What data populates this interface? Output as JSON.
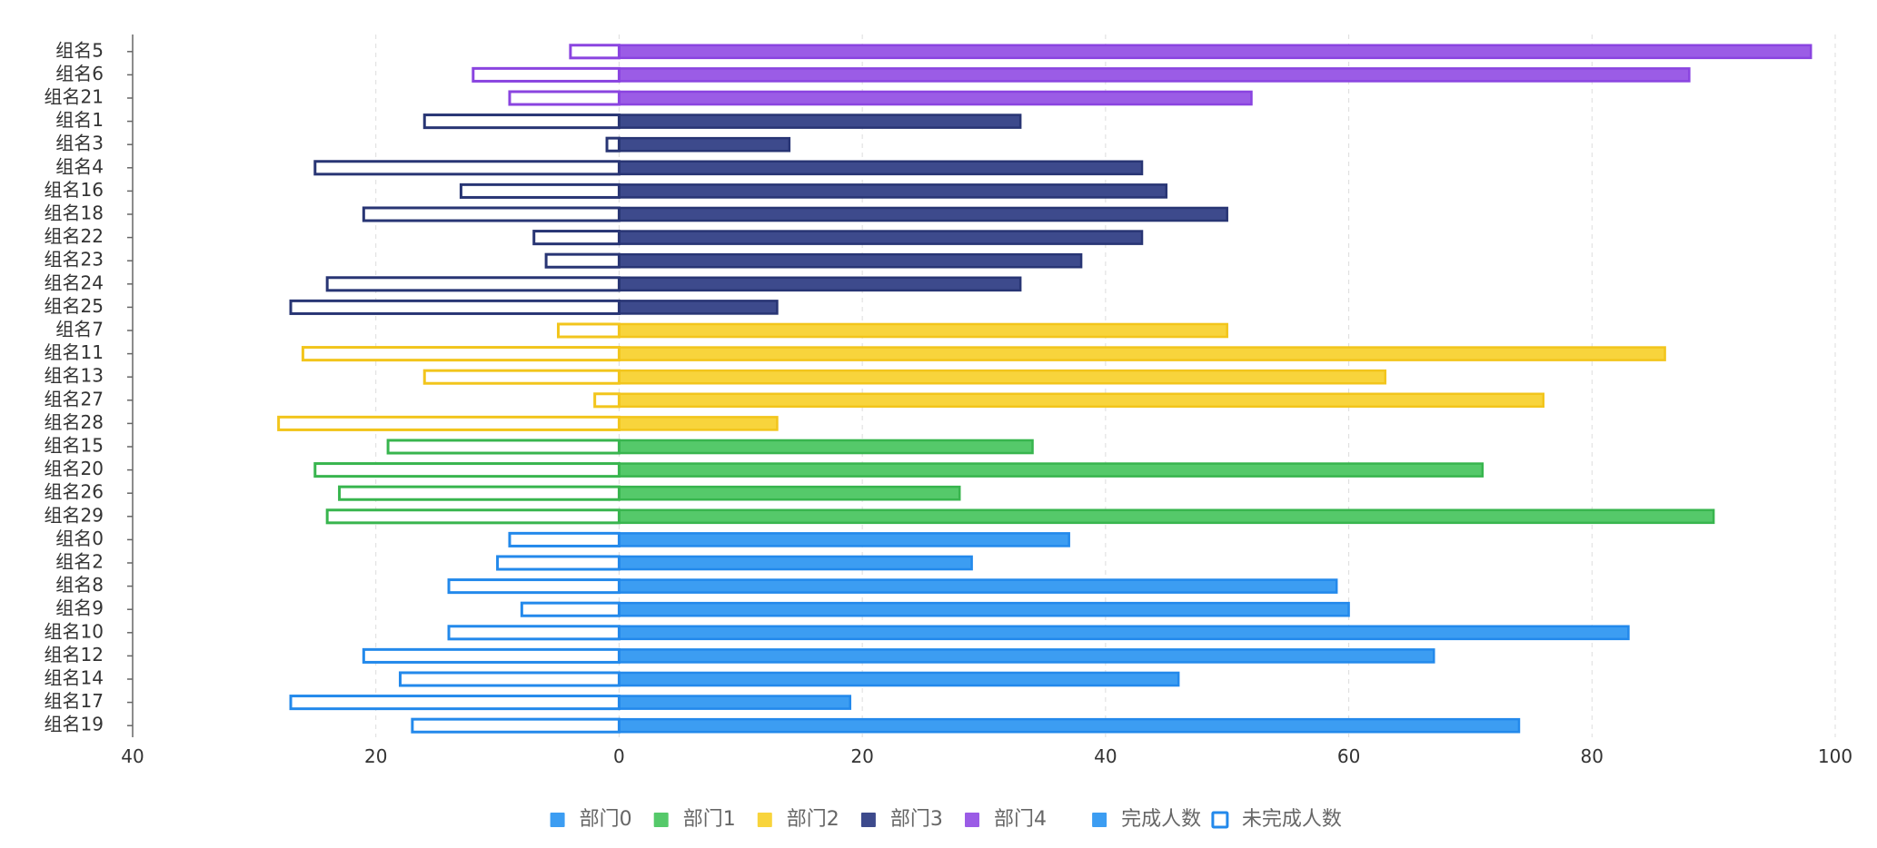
{
  "chart_data": {
    "type": "bar",
    "orientation": "horizontal",
    "diverging": true,
    "title": "",
    "xlabel": "",
    "ylabel": "",
    "xlim": [
      -40,
      100
    ],
    "x_ticks": [
      {
        "value": -40,
        "label": "40"
      },
      {
        "value": -20,
        "label": "20"
      },
      {
        "value": 0,
        "label": "0"
      },
      {
        "value": 20,
        "label": "20"
      },
      {
        "value": 40,
        "label": "40"
      },
      {
        "value": 60,
        "label": "60"
      },
      {
        "value": 80,
        "label": "80"
      },
      {
        "value": 100,
        "label": "100"
      }
    ],
    "departments": [
      {
        "name": "部门0",
        "color": "#3c9df2",
        "border": "#2389eb"
      },
      {
        "name": "部门1",
        "color": "#55c96a",
        "border": "#38b54e"
      },
      {
        "name": "部门2",
        "color": "#f8d43c",
        "border": "#f2c51c"
      },
      {
        "name": "部门3",
        "color": "#3d4a8c",
        "border": "#283574"
      },
      {
        "name": "部门4",
        "color": "#9b5ce6",
        "border": "#8a44e0"
      }
    ],
    "measures": [
      {
        "name": "完成人数",
        "style": "filled",
        "color": "#3c9df2"
      },
      {
        "name": "未完成人数",
        "style": "outline",
        "color": "#2389eb"
      }
    ],
    "groups": [
      {
        "name": "组名5",
        "dept": 4,
        "completed": 98,
        "incomplete": 4
      },
      {
        "name": "组名6",
        "dept": 4,
        "completed": 88,
        "incomplete": 12
      },
      {
        "name": "组名21",
        "dept": 4,
        "completed": 52,
        "incomplete": 9
      },
      {
        "name": "组名1",
        "dept": 3,
        "completed": 33,
        "incomplete": 16
      },
      {
        "name": "组名3",
        "dept": 3,
        "completed": 14,
        "incomplete": 1
      },
      {
        "name": "组名4",
        "dept": 3,
        "completed": 43,
        "incomplete": 25
      },
      {
        "name": "组名16",
        "dept": 3,
        "completed": 45,
        "incomplete": 13
      },
      {
        "name": "组名18",
        "dept": 3,
        "completed": 50,
        "incomplete": 21
      },
      {
        "name": "组名22",
        "dept": 3,
        "completed": 43,
        "incomplete": 7
      },
      {
        "name": "组名23",
        "dept": 3,
        "completed": 38,
        "incomplete": 6
      },
      {
        "name": "组名24",
        "dept": 3,
        "completed": 33,
        "incomplete": 24
      },
      {
        "name": "组名25",
        "dept": 3,
        "completed": 13,
        "incomplete": 27
      },
      {
        "name": "组名7",
        "dept": 2,
        "completed": 50,
        "incomplete": 5
      },
      {
        "name": "组名11",
        "dept": 2,
        "completed": 86,
        "incomplete": 26
      },
      {
        "name": "组名13",
        "dept": 2,
        "completed": 63,
        "incomplete": 16
      },
      {
        "name": "组名27",
        "dept": 2,
        "completed": 76,
        "incomplete": 2
      },
      {
        "name": "组名28",
        "dept": 2,
        "completed": 13,
        "incomplete": 28
      },
      {
        "name": "组名15",
        "dept": 1,
        "completed": 34,
        "incomplete": 19
      },
      {
        "name": "组名20",
        "dept": 1,
        "completed": 71,
        "incomplete": 25
      },
      {
        "name": "组名26",
        "dept": 1,
        "completed": 28,
        "incomplete": 23
      },
      {
        "name": "组名29",
        "dept": 1,
        "completed": 90,
        "incomplete": 24
      },
      {
        "name": "组名0",
        "dept": 0,
        "completed": 37,
        "incomplete": 9
      },
      {
        "name": "组名2",
        "dept": 0,
        "completed": 29,
        "incomplete": 10
      },
      {
        "name": "组名8",
        "dept": 0,
        "completed": 59,
        "incomplete": 14
      },
      {
        "name": "组名9",
        "dept": 0,
        "completed": 60,
        "incomplete": 8
      },
      {
        "name": "组名10",
        "dept": 0,
        "completed": 83,
        "incomplete": 14
      },
      {
        "name": "组名12",
        "dept": 0,
        "completed": 67,
        "incomplete": 21
      },
      {
        "name": "组名14",
        "dept": 0,
        "completed": 46,
        "incomplete": 18
      },
      {
        "name": "组名17",
        "dept": 0,
        "completed": 19,
        "incomplete": 27
      },
      {
        "name": "组名19",
        "dept": 0,
        "completed": 74,
        "incomplete": 17
      }
    ]
  }
}
